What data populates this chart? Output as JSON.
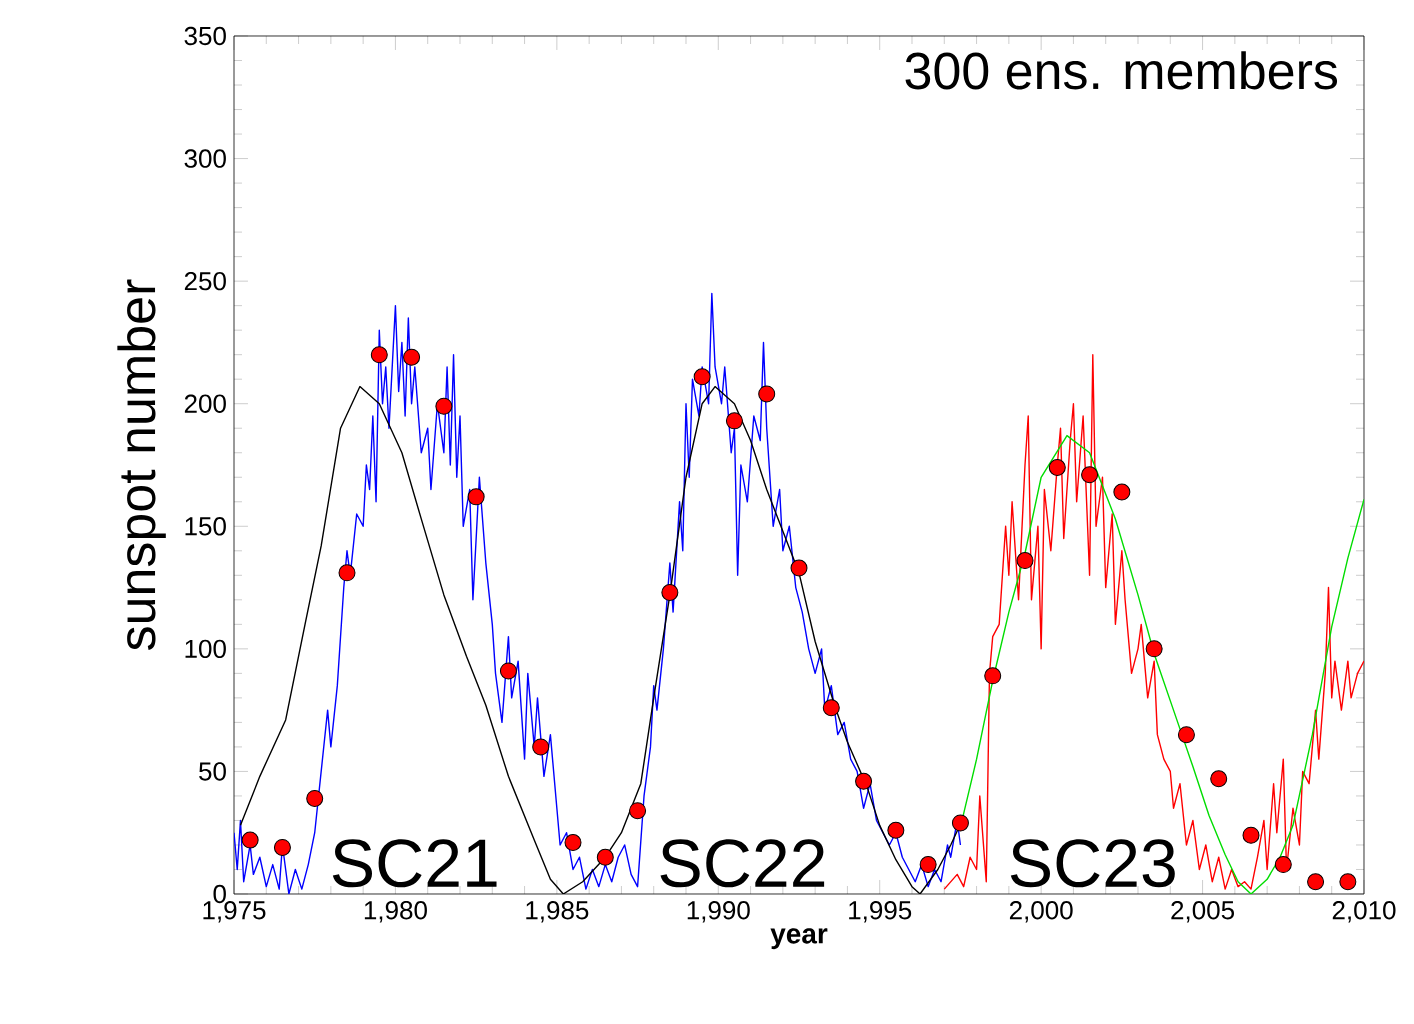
{
  "chart_data": {
    "type": "line",
    "xlabel": "year",
    "ylabel": "sunspot number",
    "xlim": [
      1975,
      2010
    ],
    "ylim": [
      0,
      350
    ],
    "xticks": [
      {
        "value": 1975,
        "label": "1,975"
      },
      {
        "value": 1980,
        "label": "1,980"
      },
      {
        "value": 1985,
        "label": "1,985"
      },
      {
        "value": 1990,
        "label": "1,990"
      },
      {
        "value": 1995,
        "label": "1,995"
      },
      {
        "value": 2000,
        "label": "2,000"
      },
      {
        "value": 2005,
        "label": "2,005"
      },
      {
        "value": 2010,
        "label": "2,010"
      }
    ],
    "yticks": [
      0,
      50,
      100,
      150,
      200,
      250,
      300,
      350
    ],
    "grid": false,
    "annotations": [
      "300 ens. members",
      "SC21",
      "SC22",
      "SC23"
    ],
    "series": [
      {
        "color": "#0000ff",
        "marker": "none",
        "x": [
          1975.0,
          1975.1,
          1975.2,
          1975.3,
          1975.5,
          1975.6,
          1975.8,
          1976.0,
          1976.2,
          1976.4,
          1976.5,
          1976.7,
          1976.9,
          1977.1,
          1977.3,
          1977.5,
          1977.7,
          1977.9,
          1978.0,
          1978.2,
          1978.4,
          1978.5,
          1978.6,
          1978.8,
          1979.0,
          1979.1,
          1979.2,
          1979.3,
          1979.4,
          1979.5,
          1979.6,
          1979.7,
          1979.8,
          1980.0,
          1980.1,
          1980.2,
          1980.3,
          1980.4,
          1980.5,
          1980.6,
          1980.8,
          1981.0,
          1981.1,
          1981.3,
          1981.5,
          1981.6,
          1981.7,
          1981.8,
          1981.9,
          1982.0,
          1982.1,
          1982.3,
          1982.4,
          1982.6,
          1982.8,
          1983.0,
          1983.1,
          1983.3,
          1983.5,
          1983.6,
          1983.8,
          1984.0,
          1984.1,
          1984.3,
          1984.4,
          1984.6,
          1984.8,
          1985.0,
          1985.1,
          1985.3,
          1985.5,
          1985.7,
          1985.9,
          1986.1,
          1986.3,
          1986.5,
          1986.7,
          1986.9,
          1987.1,
          1987.3,
          1987.5,
          1987.7,
          1987.9,
          1988.0,
          1988.1,
          1988.3,
          1988.5,
          1988.6,
          1988.8,
          1988.9,
          1989.0,
          1989.1,
          1989.2,
          1989.4,
          1989.5,
          1989.7,
          1989.8,
          1989.9,
          1990.1,
          1990.2,
          1990.4,
          1990.5,
          1990.6,
          1990.7,
          1990.9,
          1991.1,
          1991.3,
          1991.4,
          1991.5,
          1991.7,
          1991.9,
          1992.0,
          1992.2,
          1992.4,
          1992.6,
          1992.8,
          1993.0,
          1993.2,
          1993.3,
          1993.5,
          1993.7,
          1993.9,
          1994.1,
          1994.3,
          1994.5,
          1994.7,
          1994.9,
          1995.1,
          1995.3,
          1995.5,
          1995.7,
          1995.9,
          1996.1,
          1996.3,
          1996.5,
          1996.7,
          1996.9,
          1997.1,
          1997.2,
          1997.4,
          1997.5
        ],
        "values": [
          25,
          10,
          30,
          5,
          20,
          8,
          15,
          3,
          12,
          2,
          20,
          0,
          10,
          2,
          12,
          25,
          50,
          75,
          60,
          85,
          125,
          140,
          130,
          155,
          150,
          175,
          165,
          195,
          160,
          230,
          200,
          215,
          190,
          240,
          205,
          225,
          195,
          235,
          200,
          215,
          180,
          190,
          165,
          200,
          180,
          215,
          175,
          220,
          170,
          195,
          150,
          165,
          120,
          170,
          135,
          110,
          90,
          70,
          105,
          80,
          95,
          55,
          90,
          60,
          80,
          48,
          65,
          35,
          20,
          25,
          10,
          15,
          2,
          10,
          3,
          12,
          5,
          15,
          20,
          8,
          3,
          40,
          60,
          85,
          75,
          100,
          135,
          115,
          160,
          140,
          200,
          170,
          210,
          195,
          215,
          200,
          245,
          215,
          200,
          215,
          180,
          190,
          130,
          175,
          160,
          195,
          185,
          225,
          190,
          150,
          165,
          140,
          150,
          125,
          115,
          100,
          90,
          100,
          75,
          85,
          65,
          70,
          55,
          50,
          35,
          45,
          30,
          25,
          20,
          25,
          15,
          10,
          5,
          12,
          3,
          10,
          5,
          20,
          15,
          30,
          20
        ]
      },
      {
        "color": "#ff0000",
        "marker": "none",
        "x": [
          1997.0,
          1997.2,
          1997.4,
          1997.6,
          1997.8,
          1998.0,
          1998.1,
          1998.3,
          1998.4,
          1998.5,
          1998.7,
          1998.9,
          1999.0,
          1999.1,
          1999.3,
          1999.5,
          1999.6,
          1999.7,
          1999.9,
          2000.0,
          2000.1,
          2000.3,
          2000.5,
          2000.6,
          2000.7,
          2000.9,
          2001.0,
          2001.1,
          2001.3,
          2001.5,
          2001.6,
          2001.7,
          2001.9,
          2002.0,
          2002.2,
          2002.3,
          2002.5,
          2002.6,
          2002.8,
          2003.0,
          2003.1,
          2003.3,
          2003.5,
          2003.6,
          2003.8,
          2004.0,
          2004.1,
          2004.3,
          2004.5,
          2004.7,
          2004.9,
          2005.1,
          2005.3,
          2005.5,
          2005.7,
          2005.9,
          2006.1,
          2006.3,
          2006.5,
          2006.7,
          2006.9,
          2007.0,
          2007.2,
          2007.3,
          2007.5,
          2007.6,
          2007.8,
          2008.0,
          2008.1,
          2008.3,
          2008.5,
          2008.6,
          2008.8,
          2008.9,
          2009.0,
          2009.1,
          2009.3,
          2009.5,
          2009.6,
          2009.8,
          2010.0
        ],
        "values": [
          2,
          5,
          8,
          3,
          15,
          10,
          40,
          5,
          90,
          105,
          110,
          150,
          130,
          160,
          120,
          175,
          195,
          120,
          150,
          100,
          165,
          140,
          175,
          190,
          145,
          185,
          200,
          160,
          195,
          130,
          220,
          150,
          170,
          125,
          155,
          110,
          140,
          120,
          90,
          100,
          110,
          80,
          95,
          65,
          55,
          50,
          35,
          45,
          20,
          30,
          10,
          20,
          5,
          15,
          2,
          10,
          3,
          5,
          2,
          15,
          30,
          10,
          45,
          25,
          55,
          10,
          35,
          20,
          50,
          45,
          75,
          55,
          90,
          125,
          80,
          95,
          75,
          95,
          80,
          90,
          95
        ]
      },
      {
        "color": "#000000",
        "marker": "none",
        "x": [
          1975.2,
          1975.8,
          1976.6,
          1977.2,
          1977.7,
          1978.3,
          1978.9,
          1979.5,
          1980.2,
          1980.8,
          1981.5,
          1982.2,
          1982.8,
          1983.5,
          1984.3,
          1984.8,
          1985.2,
          1985.8,
          1986.5,
          1987.0,
          1987.6,
          1988.0,
          1988.5,
          1989.0,
          1989.5,
          1989.9,
          1990.5,
          1991.0,
          1991.5,
          1992.0,
          1992.5,
          1993.0,
          1993.6,
          1994.0,
          1994.6,
          1995.0,
          1995.5,
          1996.0,
          1996.25,
          1996.8,
          1997.2,
          1997.55
        ],
        "values": [
          28,
          48,
          71,
          110,
          142,
          190,
          207,
          200,
          180,
          153,
          122,
          97,
          77,
          48,
          22,
          6,
          0,
          5,
          15,
          25,
          45,
          80,
          122,
          170,
          200,
          207,
          200,
          185,
          165,
          148,
          131,
          103,
          77,
          62,
          44,
          28,
          14,
          3,
          0,
          10,
          20,
          30
        ]
      },
      {
        "color": "#00dd00",
        "marker": "none",
        "x": [
          1997.55,
          1998.0,
          1998.5,
          1999.0,
          1999.5,
          2000.0,
          2000.8,
          2001.5,
          2002.3,
          2003.0,
          2003.5,
          2004.1,
          2004.7,
          2005.2,
          2005.7,
          2006.1,
          2006.5,
          2007.0,
          2007.4,
          2007.8,
          2008.4,
          2009.0,
          2009.5,
          2010.0
        ],
        "values": [
          30,
          55,
          87,
          115,
          139,
          170,
          187,
          180,
          153,
          122,
          98,
          75,
          52,
          32,
          16,
          5,
          0,
          6,
          15,
          28,
          65,
          109,
          137,
          161
        ]
      },
      {
        "type": "scatter",
        "color": "#ff0000",
        "marker": "circle",
        "x": [
          1975.5,
          1976.5,
          1977.5,
          1978.5,
          1979.5,
          1980.5,
          1981.5,
          1982.5,
          1983.5,
          1984.5,
          1985.5,
          1986.5,
          1987.5,
          1988.5,
          1989.5,
          1990.5,
          1991.5,
          1992.5,
          1993.5,
          1994.5,
          1995.5,
          1996.5,
          1997.5,
          1998.5,
          1999.5,
          2000.5,
          2001.5,
          2002.5,
          2003.5,
          2004.5,
          2005.5,
          2006.5,
          2007.5,
          2008.5,
          2009.5
        ],
        "values": [
          22,
          19,
          39,
          131,
          220,
          219,
          199,
          162,
          91,
          60,
          21,
          15,
          34,
          123,
          211,
          193,
          204,
          133,
          76,
          46,
          26,
          12,
          29,
          89,
          136,
          174,
          171,
          164,
          100,
          65,
          47,
          24,
          12,
          5,
          5
        ]
      }
    ]
  }
}
